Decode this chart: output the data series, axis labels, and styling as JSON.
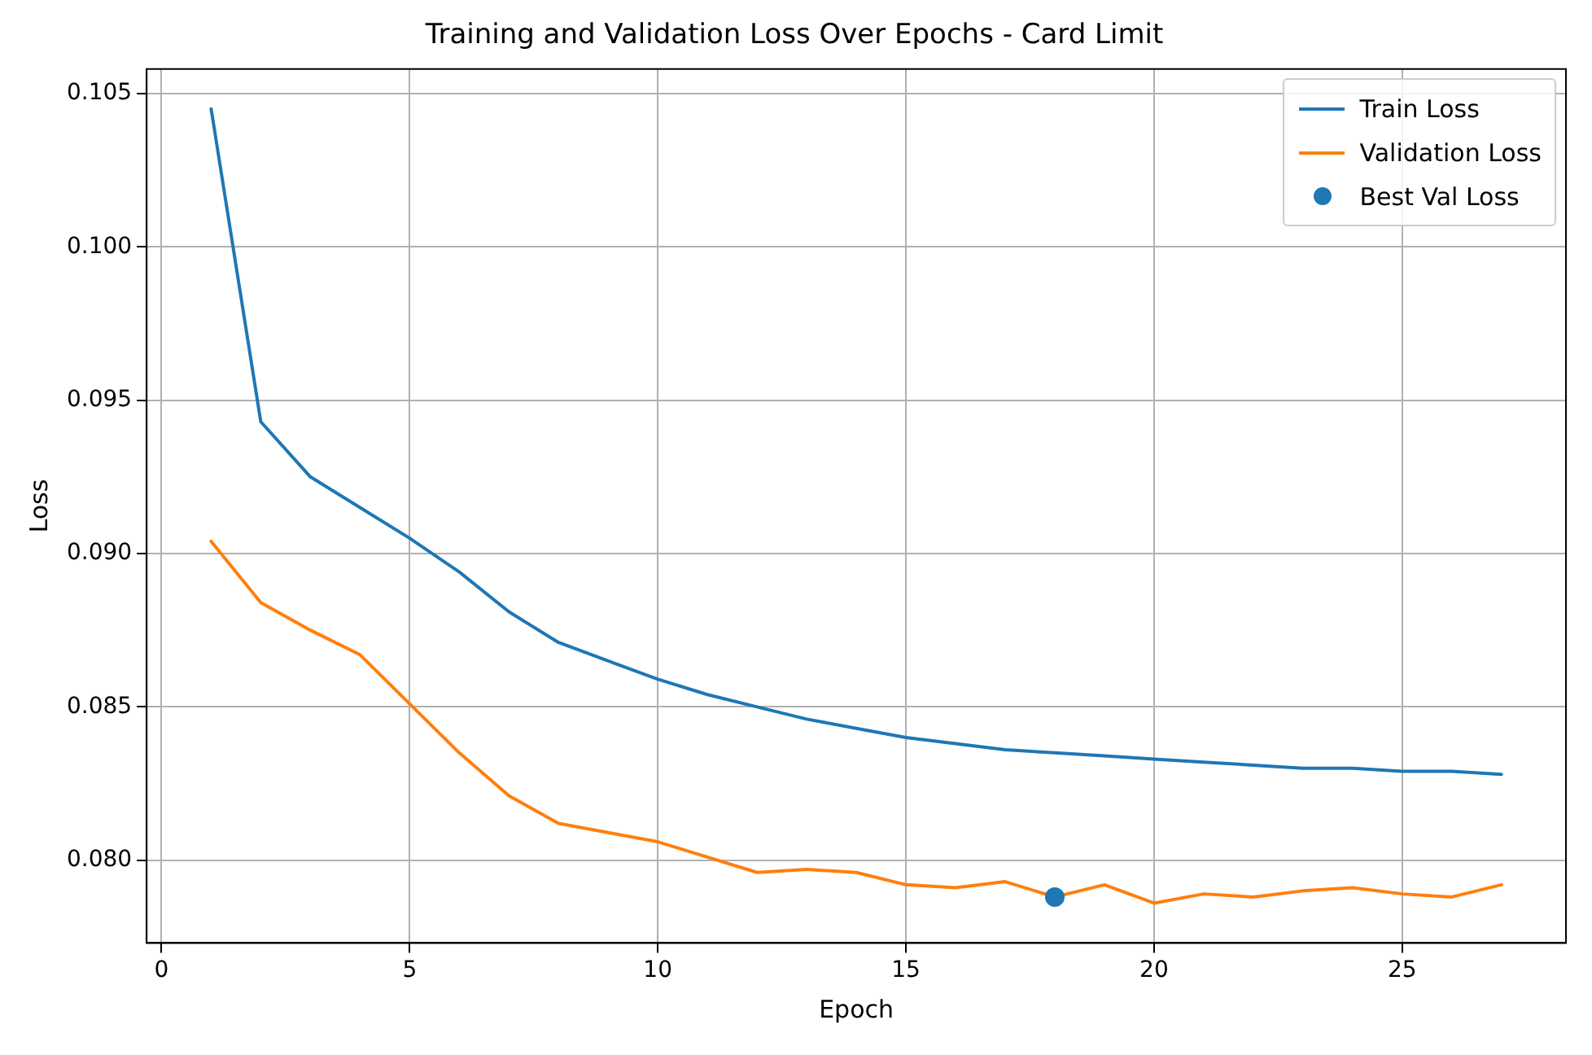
{
  "chart_data": {
    "type": "line",
    "title": "Training and Validation Loss Over Epochs - Card Limit",
    "xlabel": "Epoch",
    "ylabel": "Loss",
    "x": [
      1,
      2,
      3,
      4,
      5,
      6,
      7,
      8,
      9,
      10,
      11,
      12,
      13,
      14,
      15,
      16,
      17,
      18,
      19,
      20,
      21,
      22,
      23,
      24,
      25,
      26,
      27
    ],
    "series": [
      {
        "name": "Train Loss",
        "color": "#1f77b4",
        "values": [
          0.1045,
          0.0943,
          0.0925,
          0.0915,
          0.0905,
          0.0894,
          0.0881,
          0.0871,
          0.0865,
          0.0859,
          0.0854,
          0.085,
          0.0846,
          0.0843,
          0.084,
          0.0838,
          0.0836,
          0.0835,
          0.0834,
          0.0833,
          0.0832,
          0.0831,
          0.083,
          0.083,
          0.0829,
          0.0829,
          0.0828
        ]
      },
      {
        "name": "Validation Loss",
        "color": "#ff7f0e",
        "values": [
          0.0904,
          0.0884,
          0.0875,
          0.0867,
          0.0851,
          0.0835,
          0.0821,
          0.0812,
          0.0809,
          0.0806,
          0.0801,
          0.0796,
          0.0797,
          0.0796,
          0.0792,
          0.0791,
          0.0793,
          0.0788,
          0.0792,
          0.0786,
          0.0789,
          0.0788,
          0.079,
          0.0791,
          0.0789,
          0.0788,
          0.0792
        ]
      },
      {
        "name": "Best Val Loss",
        "type": "scatter",
        "color": "#1f77b4",
        "x": [
          18
        ],
        "values": [
          0.0788
        ],
        "marker": "circle"
      }
    ],
    "xlim": [
      -0.3,
      28.3
    ],
    "xticks": [
      0,
      5,
      10,
      15,
      20,
      25
    ],
    "ylim": [
      0.0773,
      0.1058
    ],
    "yticks": [
      {
        "value": 0.08,
        "label": "0.080"
      },
      {
        "value": 0.085,
        "label": "0.085"
      },
      {
        "value": 0.09,
        "label": "0.090"
      },
      {
        "value": 0.095,
        "label": "0.095"
      },
      {
        "value": 0.1,
        "label": "0.100"
      },
      {
        "value": 0.105,
        "label": "0.105"
      }
    ],
    "grid": true,
    "legend": "top right",
    "marker": "none",
    "line_style": "solid"
  }
}
